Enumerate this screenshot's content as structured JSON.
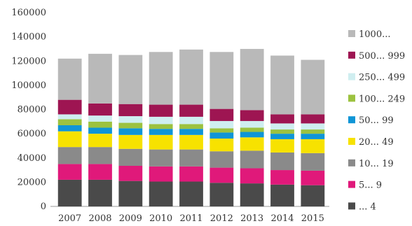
{
  "chart_data": {
    "type": "bar",
    "stacked": true,
    "title": "",
    "xlabel": "",
    "ylabel": "",
    "categories": [
      "2007",
      "2008",
      "2009",
      "2010",
      "2011",
      "2012",
      "2013",
      "2014",
      "2015"
    ],
    "ylim": [
      0,
      160000
    ],
    "yticks": [
      "0",
      "20000",
      "40000",
      "60000",
      "80000",
      "100000",
      "120000",
      "140000",
      "160000"
    ],
    "grid": false,
    "legend": "right",
    "series": [
      {
        "name": "... 4",
        "color": "#4a4a4a",
        "values": [
          22000,
          22000,
          21000,
          20500,
          20500,
          19500,
          19000,
          18000,
          17500
        ]
      },
      {
        "name": "5... 9",
        "color": "#e0197a",
        "values": [
          13000,
          13000,
          12500,
          12500,
          12500,
          12500,
          12500,
          12000,
          12000
        ]
      },
      {
        "name": "10... 19",
        "color": "#8a8a8a",
        "values": [
          14000,
          14000,
          14000,
          14000,
          14000,
          13500,
          14500,
          14500,
          14500
        ]
      },
      {
        "name": "20... 49",
        "color": "#f7e200",
        "values": [
          13000,
          11000,
          11500,
          12000,
          12000,
          10500,
          11000,
          11000,
          11500
        ]
      },
      {
        "name": "50... 99",
        "color": "#0f95d6",
        "values": [
          5000,
          5000,
          5500,
          5000,
          5000,
          5000,
          4500,
          4500,
          4500
        ]
      },
      {
        "name": "100... 249",
        "color": "#9cc23f",
        "values": [
          5000,
          5000,
          4500,
          4000,
          4000,
          3500,
          3500,
          3500,
          3500
        ]
      },
      {
        "name": "250... 499",
        "color": "#cfeef0",
        "values": [
          4000,
          5000,
          5500,
          6000,
          6000,
          6000,
          5500,
          5000,
          5000
        ]
      },
      {
        "name": "500... 999",
        "color": "#9e1552",
        "values": [
          12000,
          10000,
          10000,
          10000,
          10000,
          10000,
          9000,
          7500,
          7500
        ]
      },
      {
        "name": "1000...",
        "color": "#b9b9b9",
        "values": [
          34000,
          41000,
          40500,
          43500,
          45500,
          47000,
          50500,
          48500,
          45000
        ]
      }
    ]
  }
}
